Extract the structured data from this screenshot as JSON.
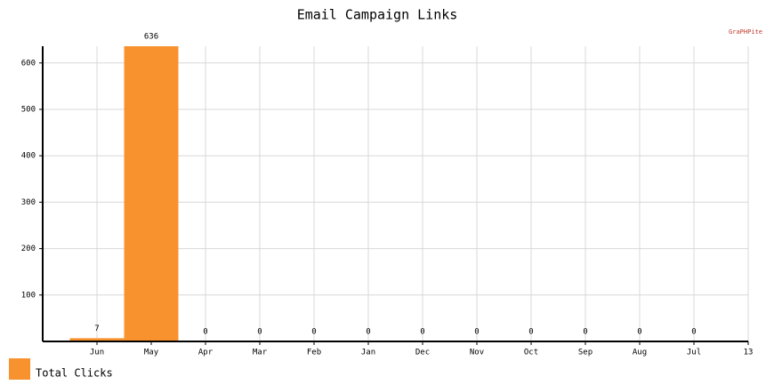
{
  "chart_data": {
    "type": "bar",
    "title": "Email Campaign Links",
    "categories": [
      "Jun",
      "May",
      "Apr",
      "Mar",
      "Feb",
      "Jan",
      "Dec",
      "Nov",
      "Oct",
      "Sep",
      "Aug",
      "Jul",
      "13"
    ],
    "series": [
      {
        "name": "Total Clicks",
        "color": "#f8922e",
        "values": [
          7,
          636,
          0,
          0,
          0,
          0,
          0,
          0,
          0,
          0,
          0,
          0,
          null
        ]
      }
    ],
    "ylim": [
      0,
      636
    ],
    "yticks": [
      100,
      200,
      300,
      400,
      500,
      600
    ],
    "grid": true,
    "legend": "bottom-left",
    "watermark": "GraPHPite"
  }
}
